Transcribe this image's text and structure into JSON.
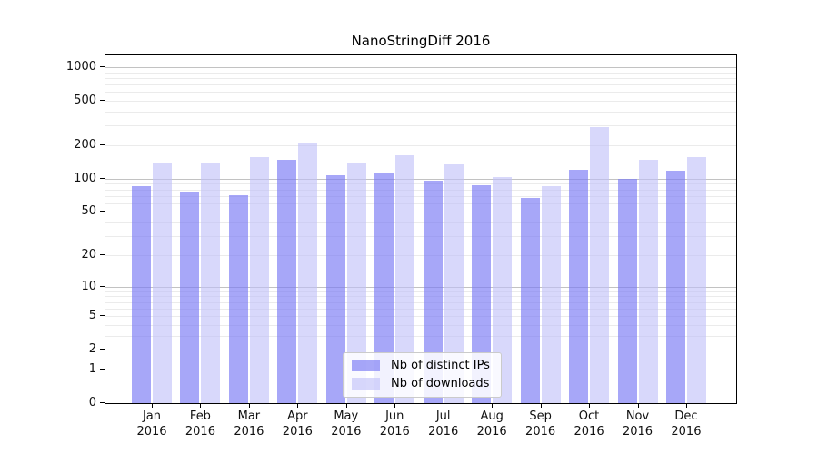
{
  "chart_data": {
    "type": "bar",
    "title": "NanoStringDiff 2016",
    "categories": [
      "Jan",
      "Feb",
      "Mar",
      "Apr",
      "May",
      "Jun",
      "Jul",
      "Aug",
      "Sep",
      "Oct",
      "Nov",
      "Dec"
    ],
    "x_tick_year": "2016",
    "series": [
      {
        "name": "Nb of distinct IPs",
        "color": "#7878f5",
        "alpha": 0.65,
        "values": [
          85,
          75,
          71,
          147,
          108,
          112,
          96,
          88,
          67,
          121,
          99,
          119
        ]
      },
      {
        "name": "Nb of downloads",
        "color": "#bebef8",
        "alpha": 0.6,
        "values": [
          137,
          141,
          156,
          210,
          141,
          162,
          136,
          104,
          85,
          292,
          147,
          156
        ]
      }
    ],
    "y_ticks": [
      0,
      1,
      2,
      5,
      10,
      20,
      50,
      100,
      200,
      500,
      1000
    ],
    "ylim": [
      0,
      1000
    ],
    "y_scale": "log10(value+1)",
    "grid": {
      "major_at": [
        1,
        10,
        100,
        1000
      ],
      "minor_at": [
        2,
        3,
        4,
        5,
        6,
        7,
        8,
        9,
        20,
        30,
        40,
        50,
        60,
        70,
        80,
        90,
        200,
        300,
        400,
        500,
        600,
        700,
        800,
        900
      ],
      "major_color": "#c2c2c2",
      "minor_color": "#ebebeb"
    },
    "legend": {
      "position": "inside-bottom-center",
      "border_color": "#cbcbcb",
      "background": "#ffffff"
    },
    "axis_color": "#000000",
    "background": "#ffffff"
  }
}
